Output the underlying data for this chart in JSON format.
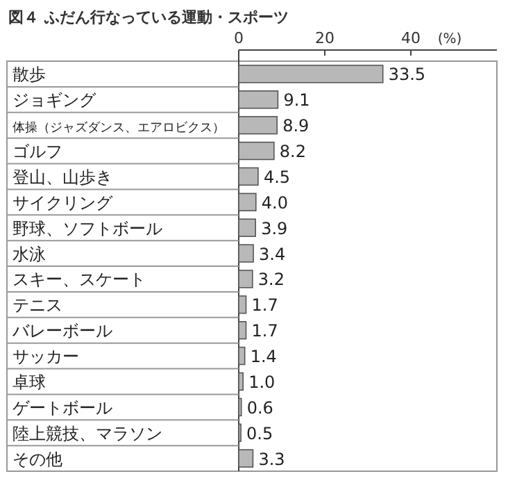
{
  "chart_data": {
    "type": "bar",
    "orientation": "horizontal",
    "title": "図４ ふだん行なっている運動・スポーツ",
    "categories": [
      "散歩",
      "ジョギング",
      "体操（ジャズダンス、エアロビクス）",
      "ゴルフ",
      "登山、山歩き",
      "サイクリング",
      "野球、ソフトボール",
      "水泳",
      "スキー、スケート",
      "テニス",
      "バレーボール",
      "サッカー",
      "卓球",
      "ゲートボール",
      "陸上競技、マラソン",
      "その他"
    ],
    "values": [
      33.5,
      9.1,
      8.9,
      8.2,
      4.5,
      4.0,
      3.9,
      3.4,
      3.2,
      1.7,
      1.7,
      1.4,
      1.0,
      0.6,
      0.5,
      3.3
    ],
    "color": "#b8b8b8",
    "xlim": [
      0,
      60
    ],
    "xticks": [
      0,
      20,
      40
    ],
    "xlabel": "(%)",
    "value_labels": [
      "33.5",
      "9.1",
      "8.9",
      "8.2",
      "4.5",
      "4.0",
      "3.9",
      "3.4",
      "3.2",
      "1.7",
      "1.7",
      "1.4",
      "1.0",
      "0.6",
      "0.5",
      "3.3"
    ]
  }
}
